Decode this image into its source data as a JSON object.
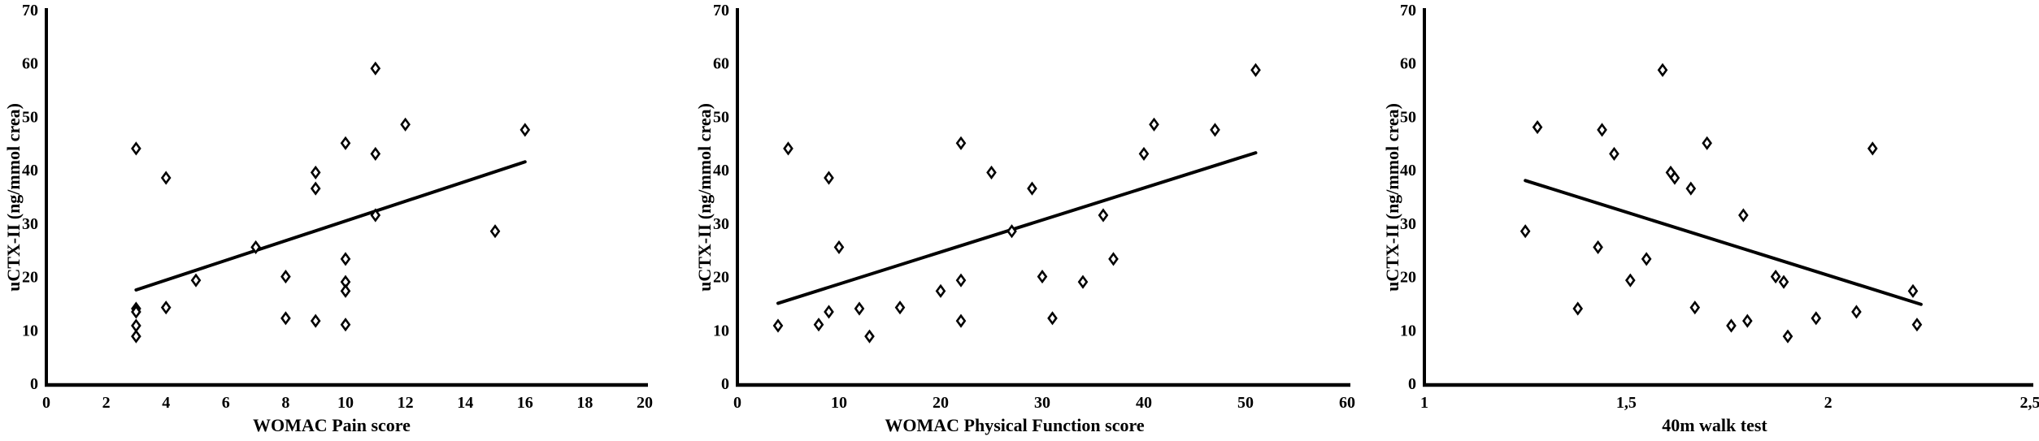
{
  "figure": {
    "background_color": "#ffffff",
    "axis_color": "#000000",
    "marker": "open-diamond-icon",
    "marker_fill": "#ffffff",
    "marker_stroke": "#000000",
    "trendline_color": "#000000"
  },
  "chart_data": [
    {
      "type": "scatter",
      "title": "",
      "xlabel": "WOMAC Pain score",
      "ylabel": "uCTX-II (ng/mmol crea)",
      "xlim": [
        0,
        20
      ],
      "ylim": [
        0,
        70
      ],
      "xticks": [
        0,
        2,
        4,
        6,
        8,
        10,
        12,
        14,
        16,
        18,
        20
      ],
      "xtick_labels": [
        "0",
        "2",
        "4",
        "6",
        "8",
        "10",
        "12",
        "14",
        "16",
        "18",
        "20"
      ],
      "yticks": [
        0,
        10,
        20,
        30,
        40,
        50,
        60,
        70
      ],
      "ytick_labels": [
        "0",
        "10",
        "20",
        "30",
        "40",
        "50",
        "60",
        "70"
      ],
      "grid": false,
      "legend": "none",
      "points": [
        [
          3,
          44
        ],
        [
          4,
          38.5
        ],
        [
          11,
          59
        ],
        [
          12,
          48.5
        ],
        [
          16,
          47.5
        ],
        [
          10,
          45
        ],
        [
          11,
          43
        ],
        [
          9,
          39.5
        ],
        [
          9,
          36.5
        ],
        [
          11,
          31.5
        ],
        [
          15,
          28.5
        ],
        [
          7,
          25.5
        ],
        [
          10,
          23.3
        ],
        [
          8,
          20
        ],
        [
          5,
          19.3
        ],
        [
          10,
          19
        ],
        [
          10,
          17.3
        ],
        [
          4,
          14.2
        ],
        [
          3,
          14
        ],
        [
          3,
          13.4
        ],
        [
          8,
          12.2
        ],
        [
          9,
          11.7
        ],
        [
          10,
          11
        ],
        [
          3,
          10.8
        ],
        [
          3,
          8.8
        ]
      ],
      "trendline": {
        "x1": 3,
        "y1": 17.5,
        "x2": 16,
        "y2": 41.5
      }
    },
    {
      "type": "scatter",
      "title": "",
      "xlabel": "WOMAC Physical Function score",
      "ylabel": "uCTX-II (ng/mmol crea)",
      "xlim": [
        0,
        60
      ],
      "ylim": [
        0,
        70
      ],
      "xticks": [
        0,
        10,
        20,
        30,
        40,
        50,
        60
      ],
      "xtick_labels": [
        "0",
        "10",
        "20",
        "30",
        "40",
        "50",
        "60"
      ],
      "yticks": [
        0,
        10,
        20,
        30,
        40,
        50,
        60,
        70
      ],
      "ytick_labels": [
        "0",
        "10",
        "20",
        "30",
        "40",
        "50",
        "60",
        "70"
      ],
      "grid": false,
      "legend": "none",
      "points": [
        [
          51,
          58.7
        ],
        [
          41,
          48.5
        ],
        [
          47,
          47.5
        ],
        [
          22,
          45
        ],
        [
          5,
          44
        ],
        [
          40,
          43
        ],
        [
          25,
          39.5
        ],
        [
          9,
          38.5
        ],
        [
          29,
          36.5
        ],
        [
          36,
          31.5
        ],
        [
          27,
          28.5
        ],
        [
          10,
          25.5
        ],
        [
          37,
          23.3
        ],
        [
          30,
          20
        ],
        [
          22,
          19.3
        ],
        [
          34,
          19
        ],
        [
          20,
          17.3
        ],
        [
          16,
          14.2
        ],
        [
          12,
          14
        ],
        [
          9,
          13.4
        ],
        [
          31,
          12.2
        ],
        [
          22,
          11.7
        ],
        [
          8,
          11
        ],
        [
          4,
          10.8
        ],
        [
          13,
          8.8
        ]
      ],
      "trendline": {
        "x1": 4,
        "y1": 15,
        "x2": 51,
        "y2": 43.2
      }
    },
    {
      "type": "scatter",
      "title": "",
      "xlabel": "40m walk test",
      "ylabel": "uCTX-II (ng/mmol crea)",
      "xlim": [
        1,
        2.5
      ],
      "ylim": [
        0,
        70
      ],
      "xticks": [
        1,
        1.5,
        2,
        2.5
      ],
      "xtick_labels": [
        "1",
        "1,5",
        "2",
        "2,5"
      ],
      "yticks": [
        0,
        10,
        20,
        30,
        40,
        50,
        60,
        70
      ],
      "ytick_labels": [
        "0",
        "10",
        "20",
        "30",
        "40",
        "50",
        "60",
        "70"
      ],
      "grid": false,
      "legend": "none",
      "points": [
        [
          1.59,
          58.7
        ],
        [
          1.28,
          48
        ],
        [
          1.44,
          47.5
        ],
        [
          1.7,
          45
        ],
        [
          2.11,
          44
        ],
        [
          1.47,
          43
        ],
        [
          1.61,
          39.5
        ],
        [
          1.62,
          38.5
        ],
        [
          1.66,
          36.5
        ],
        [
          1.79,
          31.5
        ],
        [
          1.25,
          28.5
        ],
        [
          1.43,
          25.5
        ],
        [
          1.55,
          23.3
        ],
        [
          1.87,
          20
        ],
        [
          1.51,
          19.3
        ],
        [
          1.89,
          19
        ],
        [
          2.21,
          17.3
        ],
        [
          1.67,
          14.2
        ],
        [
          1.38,
          14
        ],
        [
          2.07,
          13.4
        ],
        [
          1.97,
          12.2
        ],
        [
          1.8,
          11.7
        ],
        [
          2.22,
          11
        ],
        [
          1.76,
          10.8
        ],
        [
          1.9,
          8.8
        ]
      ],
      "trendline": {
        "x1": 1.25,
        "y1": 38,
        "x2": 2.23,
        "y2": 14.8
      }
    }
  ]
}
